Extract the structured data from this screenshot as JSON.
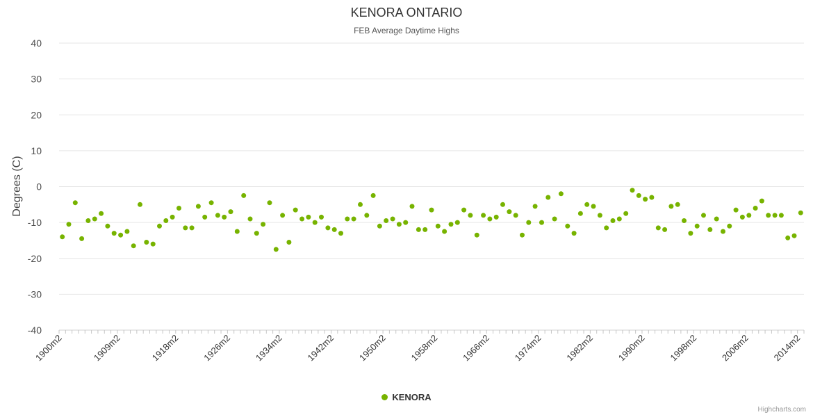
{
  "header": {
    "title": "KENORA ONTARIO",
    "subtitle": "FEB Average Daytime Highs"
  },
  "legend": {
    "label": "KENORA"
  },
  "credits": {
    "label": "Highcharts.com"
  },
  "chart_data": {
    "type": "scatter",
    "title": "KENORA ONTARIO",
    "subtitle": "FEB Average Daytime Highs",
    "xlabel": "",
    "ylabel": "Degrees (C)",
    "ylim": [
      -40,
      40
    ],
    "y_ticks": [
      -40,
      -30,
      -20,
      -10,
      0,
      10,
      20,
      30,
      40
    ],
    "grid": true,
    "legend_position": "bottom",
    "x_start_year": 1900,
    "x_end_year": 2014,
    "x_label_suffix": "m2",
    "x_tick_labels": [
      "1900m2",
      "1909m2",
      "1918m2",
      "1926m2",
      "1934m2",
      "1942m2",
      "1950m2",
      "1958m2",
      "1966m2",
      "1974m2",
      "1982m2",
      "1990m2",
      "1998m2",
      "2006m2",
      "2014m2"
    ],
    "marker_color": "#77b300",
    "grid_color": "#e6e6e6",
    "axis_line_color": "#d0d0d0",
    "series": [
      {
        "name": "KENORA",
        "values": [
          -14,
          -10.5,
          -4.5,
          -14.5,
          -9.5,
          -9,
          -7.5,
          -11,
          -13,
          -13.5,
          -12.5,
          -16.5,
          -5,
          -15.5,
          -16,
          -11,
          -9.5,
          -8.5,
          -6,
          -11.5,
          -11.5,
          -5.5,
          -8.5,
          -4.5,
          -8,
          -8.5,
          -7,
          -12.5,
          -2.5,
          -9,
          -13,
          -10.5,
          -4.5,
          -17.5,
          -8,
          -15.5,
          -6.5,
          -9,
          -8.5,
          -10,
          -8.5,
          -11.5,
          -12,
          -13,
          -9,
          -9,
          -5,
          -8,
          -2.5,
          -11,
          -9.5,
          -9,
          -10.5,
          -10,
          -5.5,
          -12,
          -12,
          -6.5,
          -11,
          -12.5,
          -10.5,
          -10,
          -6.5,
          -8,
          -13.5,
          -8,
          -9,
          -8.5,
          -5,
          -7,
          -8,
          -13.5,
          -10,
          -5.5,
          -10,
          -3,
          -9,
          -2,
          -11,
          -13,
          -7.5,
          -5,
          -5.5,
          -8,
          -11.5,
          -9.5,
          -9,
          -7.5,
          -1,
          -2.5,
          -3.5,
          -3,
          -11.5,
          -12,
          -5.5,
          -5,
          -9.5,
          -13,
          -11,
          -8,
          -12,
          -9,
          -12.5,
          -11,
          -6.5,
          -8.5,
          -8,
          -6,
          -4,
          -8,
          -8,
          -8,
          -14.3,
          -13.7,
          -7.3
        ]
      }
    ]
  }
}
